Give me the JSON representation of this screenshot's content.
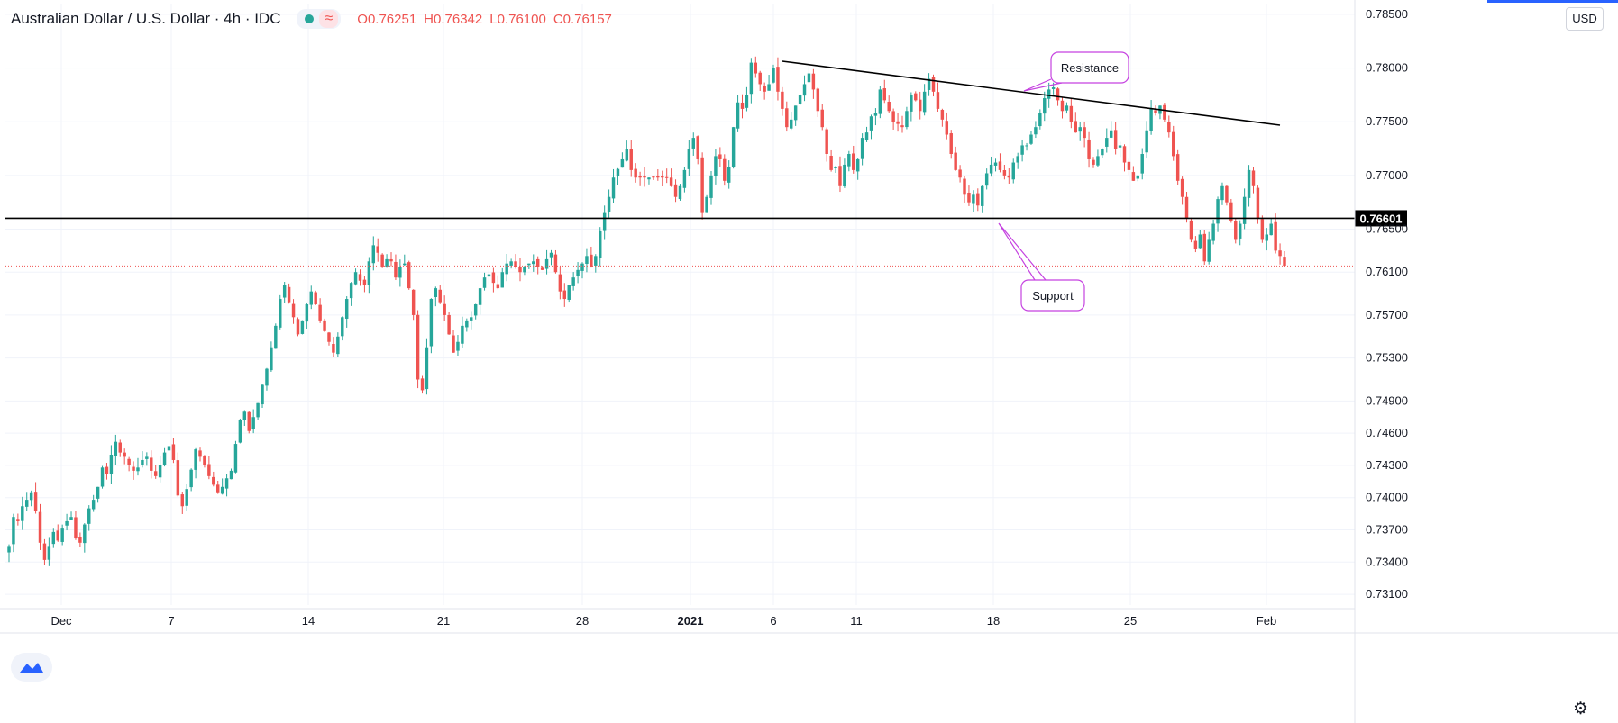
{
  "header": {
    "title": "Australian Dollar / U.S. Dollar · 4h · IDC",
    "open_label": "O",
    "open": "0.76251",
    "high_label": "H",
    "high": "0.76342",
    "low_label": "L",
    "low": "0.76100",
    "close_label": "C",
    "close": "0.76157",
    "currency": "USD"
  },
  "icons": [
    "status-dot-icon",
    "wave-indicator-icon",
    "tradingview-logo-icon",
    "gear-icon"
  ],
  "colors": {
    "up": "#26a69a",
    "down": "#ef5350",
    "annotation": "#c542e0",
    "line": "#000000",
    "grid": "#f0f3fa"
  },
  "chart_data": {
    "type": "candlestick",
    "timeframe": "4h",
    "x_ticks": [
      "Dec",
      "7",
      "14",
      "21",
      "28",
      "2021",
      "6",
      "11",
      "18",
      "25",
      "Feb"
    ],
    "y_ticks": [
      "0.78500",
      "0.78000",
      "0.77500",
      "0.77000",
      "0.76500",
      "0.76100",
      "0.75700",
      "0.75300",
      "0.74900",
      "0.74600",
      "0.74300",
      "0.74000",
      "0.73700",
      "0.73400",
      "0.73100"
    ],
    "ylim": [
      0.73,
      0.786
    ],
    "series_closes": [
      0.7355,
      0.7382,
      0.7378,
      0.7392,
      0.7398,
      0.7405,
      0.7388,
      0.7358,
      0.7342,
      0.7355,
      0.7368,
      0.736,
      0.7372,
      0.7378,
      0.7382,
      0.7362,
      0.7358,
      0.7375,
      0.739,
      0.7398,
      0.741,
      0.7428,
      0.7422,
      0.744,
      0.7452,
      0.7442,
      0.7438,
      0.743,
      0.7425,
      0.7428,
      0.7435,
      0.7438,
      0.7425,
      0.742,
      0.743,
      0.7442,
      0.7448,
      0.7435,
      0.7402,
      0.7392,
      0.7408,
      0.7426,
      0.7445,
      0.7438,
      0.743,
      0.742,
      0.7412,
      0.7405,
      0.741,
      0.7418,
      0.7425,
      0.745,
      0.7472,
      0.748,
      0.7462,
      0.7475,
      0.7488,
      0.7505,
      0.752,
      0.754,
      0.756,
      0.7585,
      0.7598,
      0.7582,
      0.7568,
      0.7552,
      0.7565,
      0.758,
      0.7592,
      0.758,
      0.7565,
      0.7555,
      0.7545,
      0.7535,
      0.755,
      0.7568,
      0.7585,
      0.76,
      0.761,
      0.7602,
      0.7598,
      0.762,
      0.7635,
      0.7628,
      0.7615,
      0.7622,
      0.762,
      0.7605,
      0.7615,
      0.7618,
      0.7595,
      0.757,
      0.751,
      0.75,
      0.754,
      0.7585,
      0.7595,
      0.7582,
      0.757,
      0.7552,
      0.7535,
      0.7545,
      0.756,
      0.7565,
      0.7568,
      0.758,
      0.7595,
      0.7605,
      0.7608,
      0.76,
      0.7595,
      0.761,
      0.7618,
      0.762,
      0.7615,
      0.761,
      0.7615,
      0.7618,
      0.762,
      0.7615,
      0.7612,
      0.7622,
      0.7628,
      0.761,
      0.7592,
      0.7585,
      0.7598,
      0.7605,
      0.7612,
      0.7618,
      0.7625,
      0.7615,
      0.7625,
      0.7648,
      0.7665,
      0.768,
      0.7698,
      0.7706,
      0.7715,
      0.7725,
      0.7705,
      0.7698,
      0.7698,
      0.7698,
      0.7698,
      0.7698,
      0.7698,
      0.7698,
      0.7698,
      0.769,
      0.768,
      0.769,
      0.7705,
      0.7725,
      0.7735,
      0.7715,
      0.7665,
      0.768,
      0.77,
      0.7718,
      0.7715,
      0.7695,
      0.7708,
      0.7745,
      0.7768,
      0.7762,
      0.7775,
      0.7805,
      0.7795,
      0.7785,
      0.7778,
      0.7785,
      0.78,
      0.7778,
      0.7762,
      0.7745,
      0.7752,
      0.7765,
      0.7775,
      0.7785,
      0.7795,
      0.778,
      0.776,
      0.7745,
      0.772,
      0.7705,
      0.7708,
      0.769,
      0.771,
      0.772,
      0.7705,
      0.7715,
      0.7735,
      0.774,
      0.7755,
      0.7758,
      0.778,
      0.777,
      0.776,
      0.775,
      0.7748,
      0.7745,
      0.776,
      0.7775,
      0.777,
      0.776,
      0.7778,
      0.779,
      0.7778,
      0.7762,
      0.7752,
      0.7738,
      0.772,
      0.7705,
      0.7698,
      0.7682,
      0.7675,
      0.7682,
      0.7672,
      0.769,
      0.7702,
      0.771,
      0.7712,
      0.7705,
      0.77,
      0.7698,
      0.7712,
      0.7718,
      0.7728,
      0.7728,
      0.7738,
      0.7745,
      0.7758,
      0.7772,
      0.778,
      0.7782,
      0.777,
      0.776,
      0.7765,
      0.775,
      0.774,
      0.7745,
      0.7735,
      0.7715,
      0.771,
      0.7718,
      0.7725,
      0.7735,
      0.7742,
      0.7725,
      0.7728,
      0.7712,
      0.7705,
      0.7695,
      0.77,
      0.772,
      0.7742,
      0.7762,
      0.7758,
      0.7765,
      0.7752,
      0.774,
      0.7718,
      0.7695,
      0.768,
      0.766,
      0.764,
      0.7632,
      0.7645,
      0.762,
      0.764,
      0.7655,
      0.7678,
      0.769,
      0.7675,
      0.7658,
      0.764,
      0.7655,
      0.768,
      0.7705,
      0.769,
      0.766,
      0.764,
      0.7645,
      0.7655,
      0.763,
      0.7625,
      0.7616
    ],
    "horizontal_line": {
      "price": 0.76601,
      "label": "0.76601"
    },
    "last_price_line": 0.76157,
    "annotations": [
      {
        "text": "Resistance"
      },
      {
        "text": "Support"
      }
    ]
  }
}
